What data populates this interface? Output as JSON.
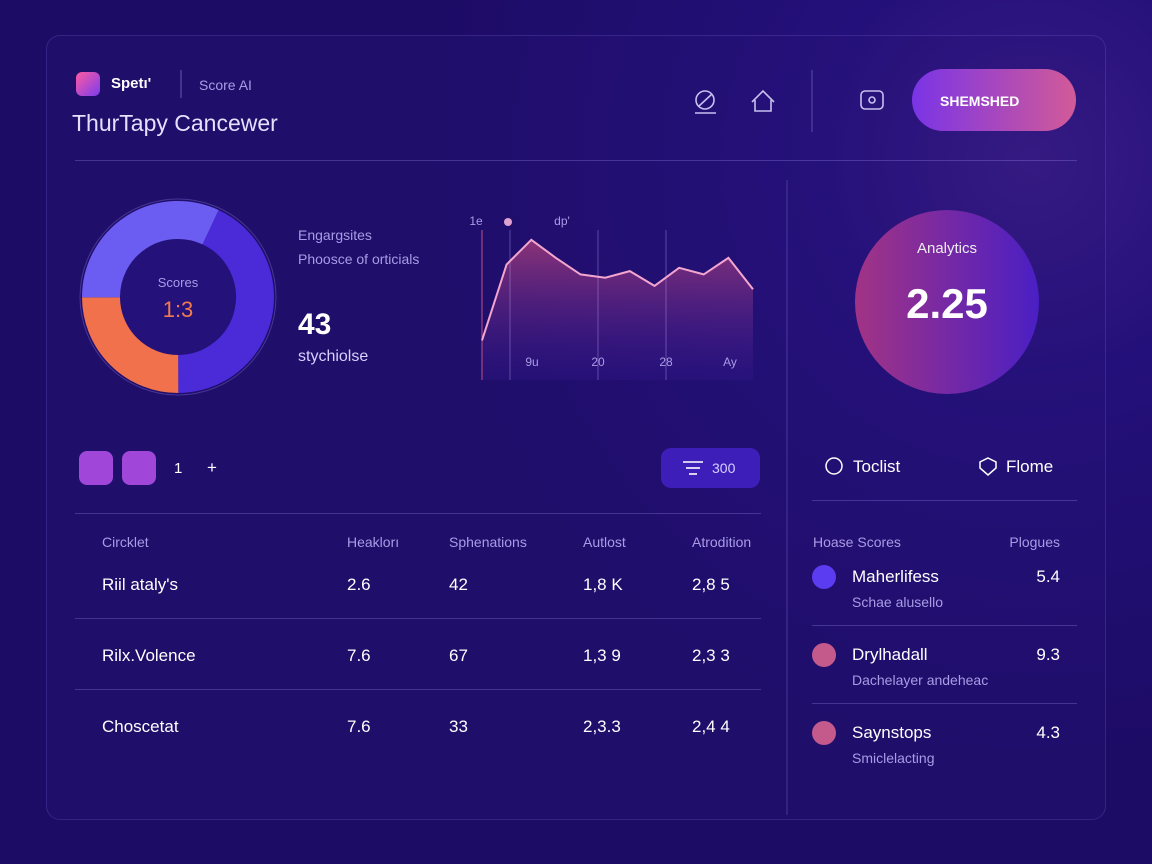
{
  "header": {
    "brand": "Spetı'",
    "product": "Score AI",
    "title": "ThurTapy Cancewer",
    "button": "SHEMSHED"
  },
  "summary": {
    "donut": {
      "label": "Scores",
      "value_text": "1:3",
      "segments": [
        {
          "value": 43,
          "color": "#4b2ad8"
        },
        {
          "value": 25,
          "color": "#f0714b"
        },
        {
          "value": 32,
          "color": "#6b5cf2"
        }
      ]
    },
    "heading": "Engargsites",
    "subheading": "Phoosce of orticials",
    "metric": "43",
    "metric_label": "stychiolse"
  },
  "trend": {
    "top_labels": [
      "1e",
      "dp'"
    ],
    "x_labels": [
      "9u",
      "20",
      "28",
      "Ay"
    ],
    "values": [
      24,
      70,
      85,
      74,
      64,
      62,
      66,
      57,
      68,
      64,
      74,
      55
    ],
    "ylim": [
      0,
      100
    ],
    "color": "#f4a6cf"
  },
  "analytics": {
    "label": "Analytics",
    "value": "2.25"
  },
  "toolbar": {
    "count": "1",
    "add": "+",
    "filter": "300"
  },
  "tabs": [
    "Toclist",
    "Flome"
  ],
  "table": {
    "columns": [
      "Circklet",
      "Heaklorı",
      "Sphenations",
      "Autlost",
      "Atrodition"
    ],
    "rows": [
      [
        "Riil ataly's",
        "2.6",
        "42",
        "1,8 K",
        "2,8 5"
      ],
      [
        "Rilx.Volence",
        "7.6",
        "67",
        "1,3 9",
        "2,3 3"
      ],
      [
        "Choscetat",
        "7.6",
        "33",
        "2,3.3",
        "2,4 4"
      ]
    ]
  },
  "list": {
    "header": [
      "Hoase Scores",
      "Plogues"
    ],
    "items": [
      {
        "name": "Maherlifess",
        "detail": "Schae alusello",
        "score": "5.4",
        "color": "#5b3cf0"
      },
      {
        "name": "Drylhadall",
        "detail": "Dachelayer andeheac",
        "score": "9.3",
        "color": "#c45a8c"
      },
      {
        "name": "Saynstops",
        "detail": "Smiclelacting",
        "score": "4.3",
        "color": "#c45a8c"
      }
    ]
  }
}
